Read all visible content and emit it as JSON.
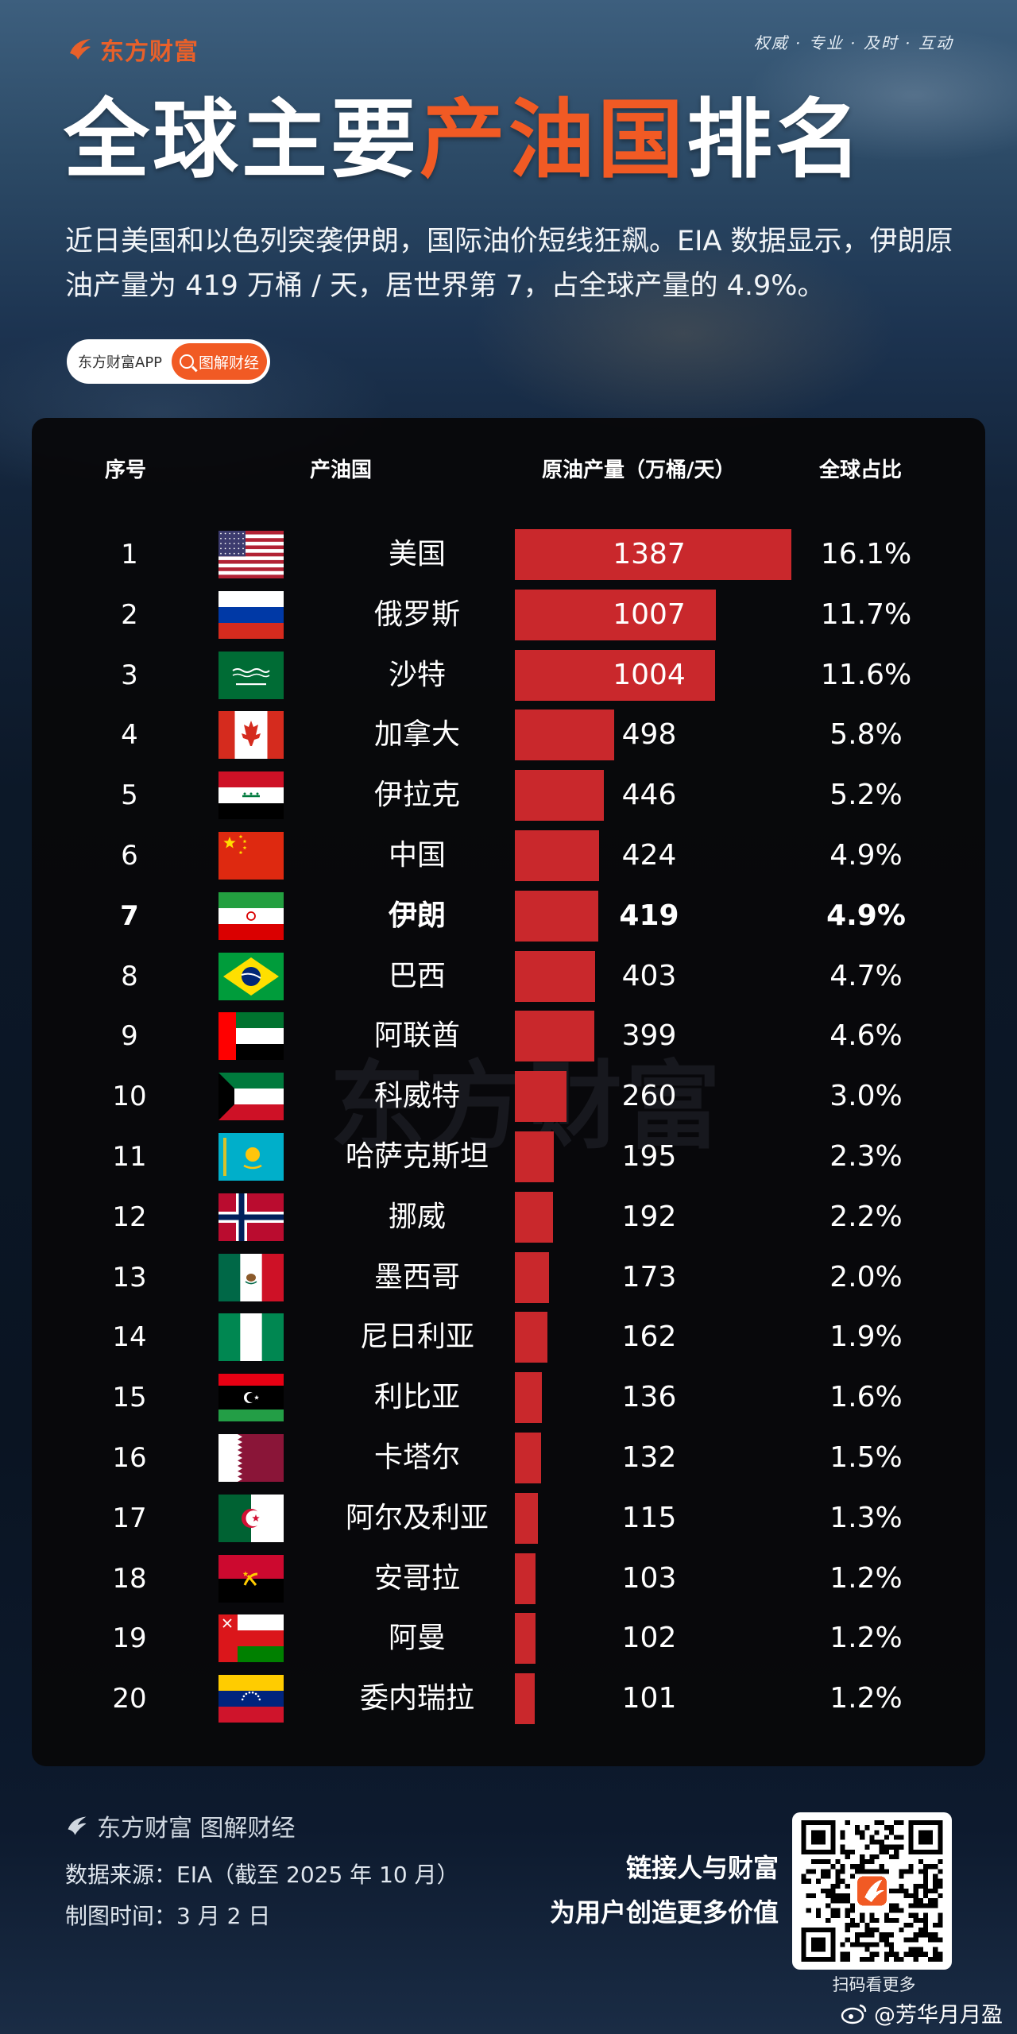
{
  "brand": {
    "name": "东方财富",
    "slogan": "权威 · 专业 · 及时 · 互动"
  },
  "title": {
    "part1": "全球主要",
    "highlight": "产油国",
    "part2": "排名"
  },
  "subtitle": "近日美国和以色列突袭伊朗，国际油价短线狂飙。EIA 数据显示，伊朗原油产量为 419 万桶 / 天，居世界第 7，占全球产量的 4.9%。",
  "pill": {
    "app_label": "东方财富APP",
    "button_label": "图解财经"
  },
  "colors": {
    "accent": "#f15a24",
    "bar": "#c9282c",
    "panel": "#08080a"
  },
  "chart_data": {
    "type": "table",
    "columns": [
      "序号",
      "产油国",
      "原油产量（万桶/天）",
      "全球占比"
    ],
    "highlight_rank": 7,
    "rows": [
      {
        "rank": "1",
        "flag": "usa-flag-icon",
        "country": "美国",
        "value": 1387,
        "value_label": "1387",
        "share": "16.1%"
      },
      {
        "rank": "2",
        "flag": "russia-flag-icon",
        "country": "俄罗斯",
        "value": 1007,
        "value_label": "1007",
        "share": "11.7%"
      },
      {
        "rank": "3",
        "flag": "saudi-arabia-flag-icon",
        "country": "沙特",
        "value": 1004,
        "value_label": "1004",
        "share": "11.6%"
      },
      {
        "rank": "4",
        "flag": "canada-flag-icon",
        "country": "加拿大",
        "value": 498,
        "value_label": "498",
        "share": "5.8%"
      },
      {
        "rank": "5",
        "flag": "iraq-flag-icon",
        "country": "伊拉克",
        "value": 446,
        "value_label": "446",
        "share": "5.2%"
      },
      {
        "rank": "6",
        "flag": "china-flag-icon",
        "country": "中国",
        "value": 424,
        "value_label": "424",
        "share": "4.9%"
      },
      {
        "rank": "7",
        "flag": "iran-flag-icon",
        "country": "伊朗",
        "value": 419,
        "value_label": "419",
        "share": "4.9%"
      },
      {
        "rank": "8",
        "flag": "brazil-flag-icon",
        "country": "巴西",
        "value": 403,
        "value_label": "403",
        "share": "4.7%"
      },
      {
        "rank": "9",
        "flag": "uae-flag-icon",
        "country": "阿联酋",
        "value": 399,
        "value_label": "399",
        "share": "4.6%"
      },
      {
        "rank": "10",
        "flag": "kuwait-flag-icon",
        "country": "科威特",
        "value": 260,
        "value_label": "260",
        "share": "3.0%"
      },
      {
        "rank": "11",
        "flag": "kazakhstan-flag-icon",
        "country": "哈萨克斯坦",
        "value": 195,
        "value_label": "195",
        "share": "2.3%"
      },
      {
        "rank": "12",
        "flag": "norway-flag-icon",
        "country": "挪威",
        "value": 192,
        "value_label": "192",
        "share": "2.2%"
      },
      {
        "rank": "13",
        "flag": "mexico-flag-icon",
        "country": "墨西哥",
        "value": 173,
        "value_label": "173",
        "share": "2.0%"
      },
      {
        "rank": "14",
        "flag": "nigeria-flag-icon",
        "country": "尼日利亚",
        "value": 162,
        "value_label": "162",
        "share": "1.9%"
      },
      {
        "rank": "15",
        "flag": "libya-flag-icon",
        "country": "利比亚",
        "value": 136,
        "value_label": "136",
        "share": "1.6%"
      },
      {
        "rank": "16",
        "flag": "qatar-flag-icon",
        "country": "卡塔尔",
        "value": 132,
        "value_label": "132",
        "share": "1.5%"
      },
      {
        "rank": "17",
        "flag": "algeria-flag-icon",
        "country": "阿尔及利亚",
        "value": 115,
        "value_label": "115",
        "share": "1.3%"
      },
      {
        "rank": "18",
        "flag": "angola-flag-icon",
        "country": "安哥拉",
        "value": 103,
        "value_label": "103",
        "share": "1.2%"
      },
      {
        "rank": "19",
        "flag": "oman-flag-icon",
        "country": "阿曼",
        "value": 102,
        "value_label": "102",
        "share": "1.2%"
      },
      {
        "rank": "20",
        "flag": "venezuela-flag-icon",
        "country": "委内瑞拉",
        "value": 101,
        "value_label": "101",
        "share": "1.2%"
      }
    ]
  },
  "watermark": "东方财富",
  "footer": {
    "brand": "东方财富 图解财经",
    "source": "数据来源：EIA（截至 2025 年 10 月）",
    "date": "制图时间：3 月 2 日",
    "tagline1": "链接人与财富",
    "tagline2": "为用户创造更多价值",
    "qr_caption": "扫码看更多"
  },
  "weibo": {
    "handle": "@芳华月月盈"
  }
}
